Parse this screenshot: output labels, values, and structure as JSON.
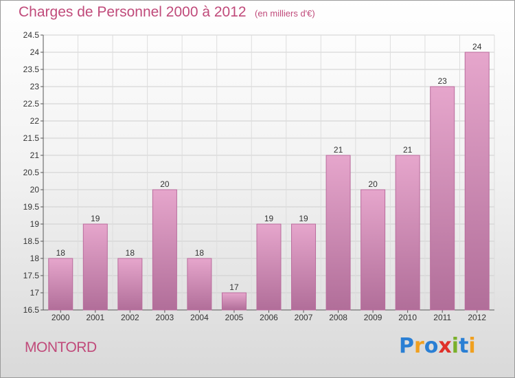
{
  "header": {
    "title": "Charges de Personnel 2000 à 2012",
    "subtitle": "(en milliers d'€)"
  },
  "footer": {
    "commune": "MONTORD",
    "logo": {
      "letters": [
        "P",
        "r",
        "o",
        "x",
        "i",
        "t",
        "i"
      ],
      "colors": [
        "#2a7fd4",
        "#f0a020",
        "#2a7fd4",
        "#e0302a",
        "#7ab02a",
        "#2a7fd4",
        "#f0a020"
      ]
    }
  },
  "colors": {
    "bar": "#d98fbc",
    "bar_edge": "#b96b9c",
    "text": "#c04a7a"
  },
  "chart_data": {
    "type": "bar",
    "categories": [
      "2000",
      "2001",
      "2002",
      "2003",
      "2004",
      "2005",
      "2006",
      "2007",
      "2008",
      "2009",
      "2010",
      "2011",
      "2012"
    ],
    "values": [
      18,
      19,
      18,
      20,
      18,
      17,
      19,
      19,
      21,
      20,
      21,
      23,
      24
    ],
    "data_labels": [
      "18",
      "19",
      "18",
      "20",
      "18",
      "17",
      "19",
      "19",
      "21",
      "20",
      "21",
      "23",
      "24"
    ],
    "y_ticks": [
      "16.5",
      "17",
      "17.5",
      "18",
      "18.5",
      "19",
      "19.5",
      "20",
      "20.5",
      "21",
      "21.5",
      "22",
      "22.5",
      "23",
      "23.5",
      "24",
      "24.5"
    ],
    "ylim": [
      16.5,
      24.5
    ],
    "grid": true,
    "xlabel": "",
    "ylabel": ""
  }
}
